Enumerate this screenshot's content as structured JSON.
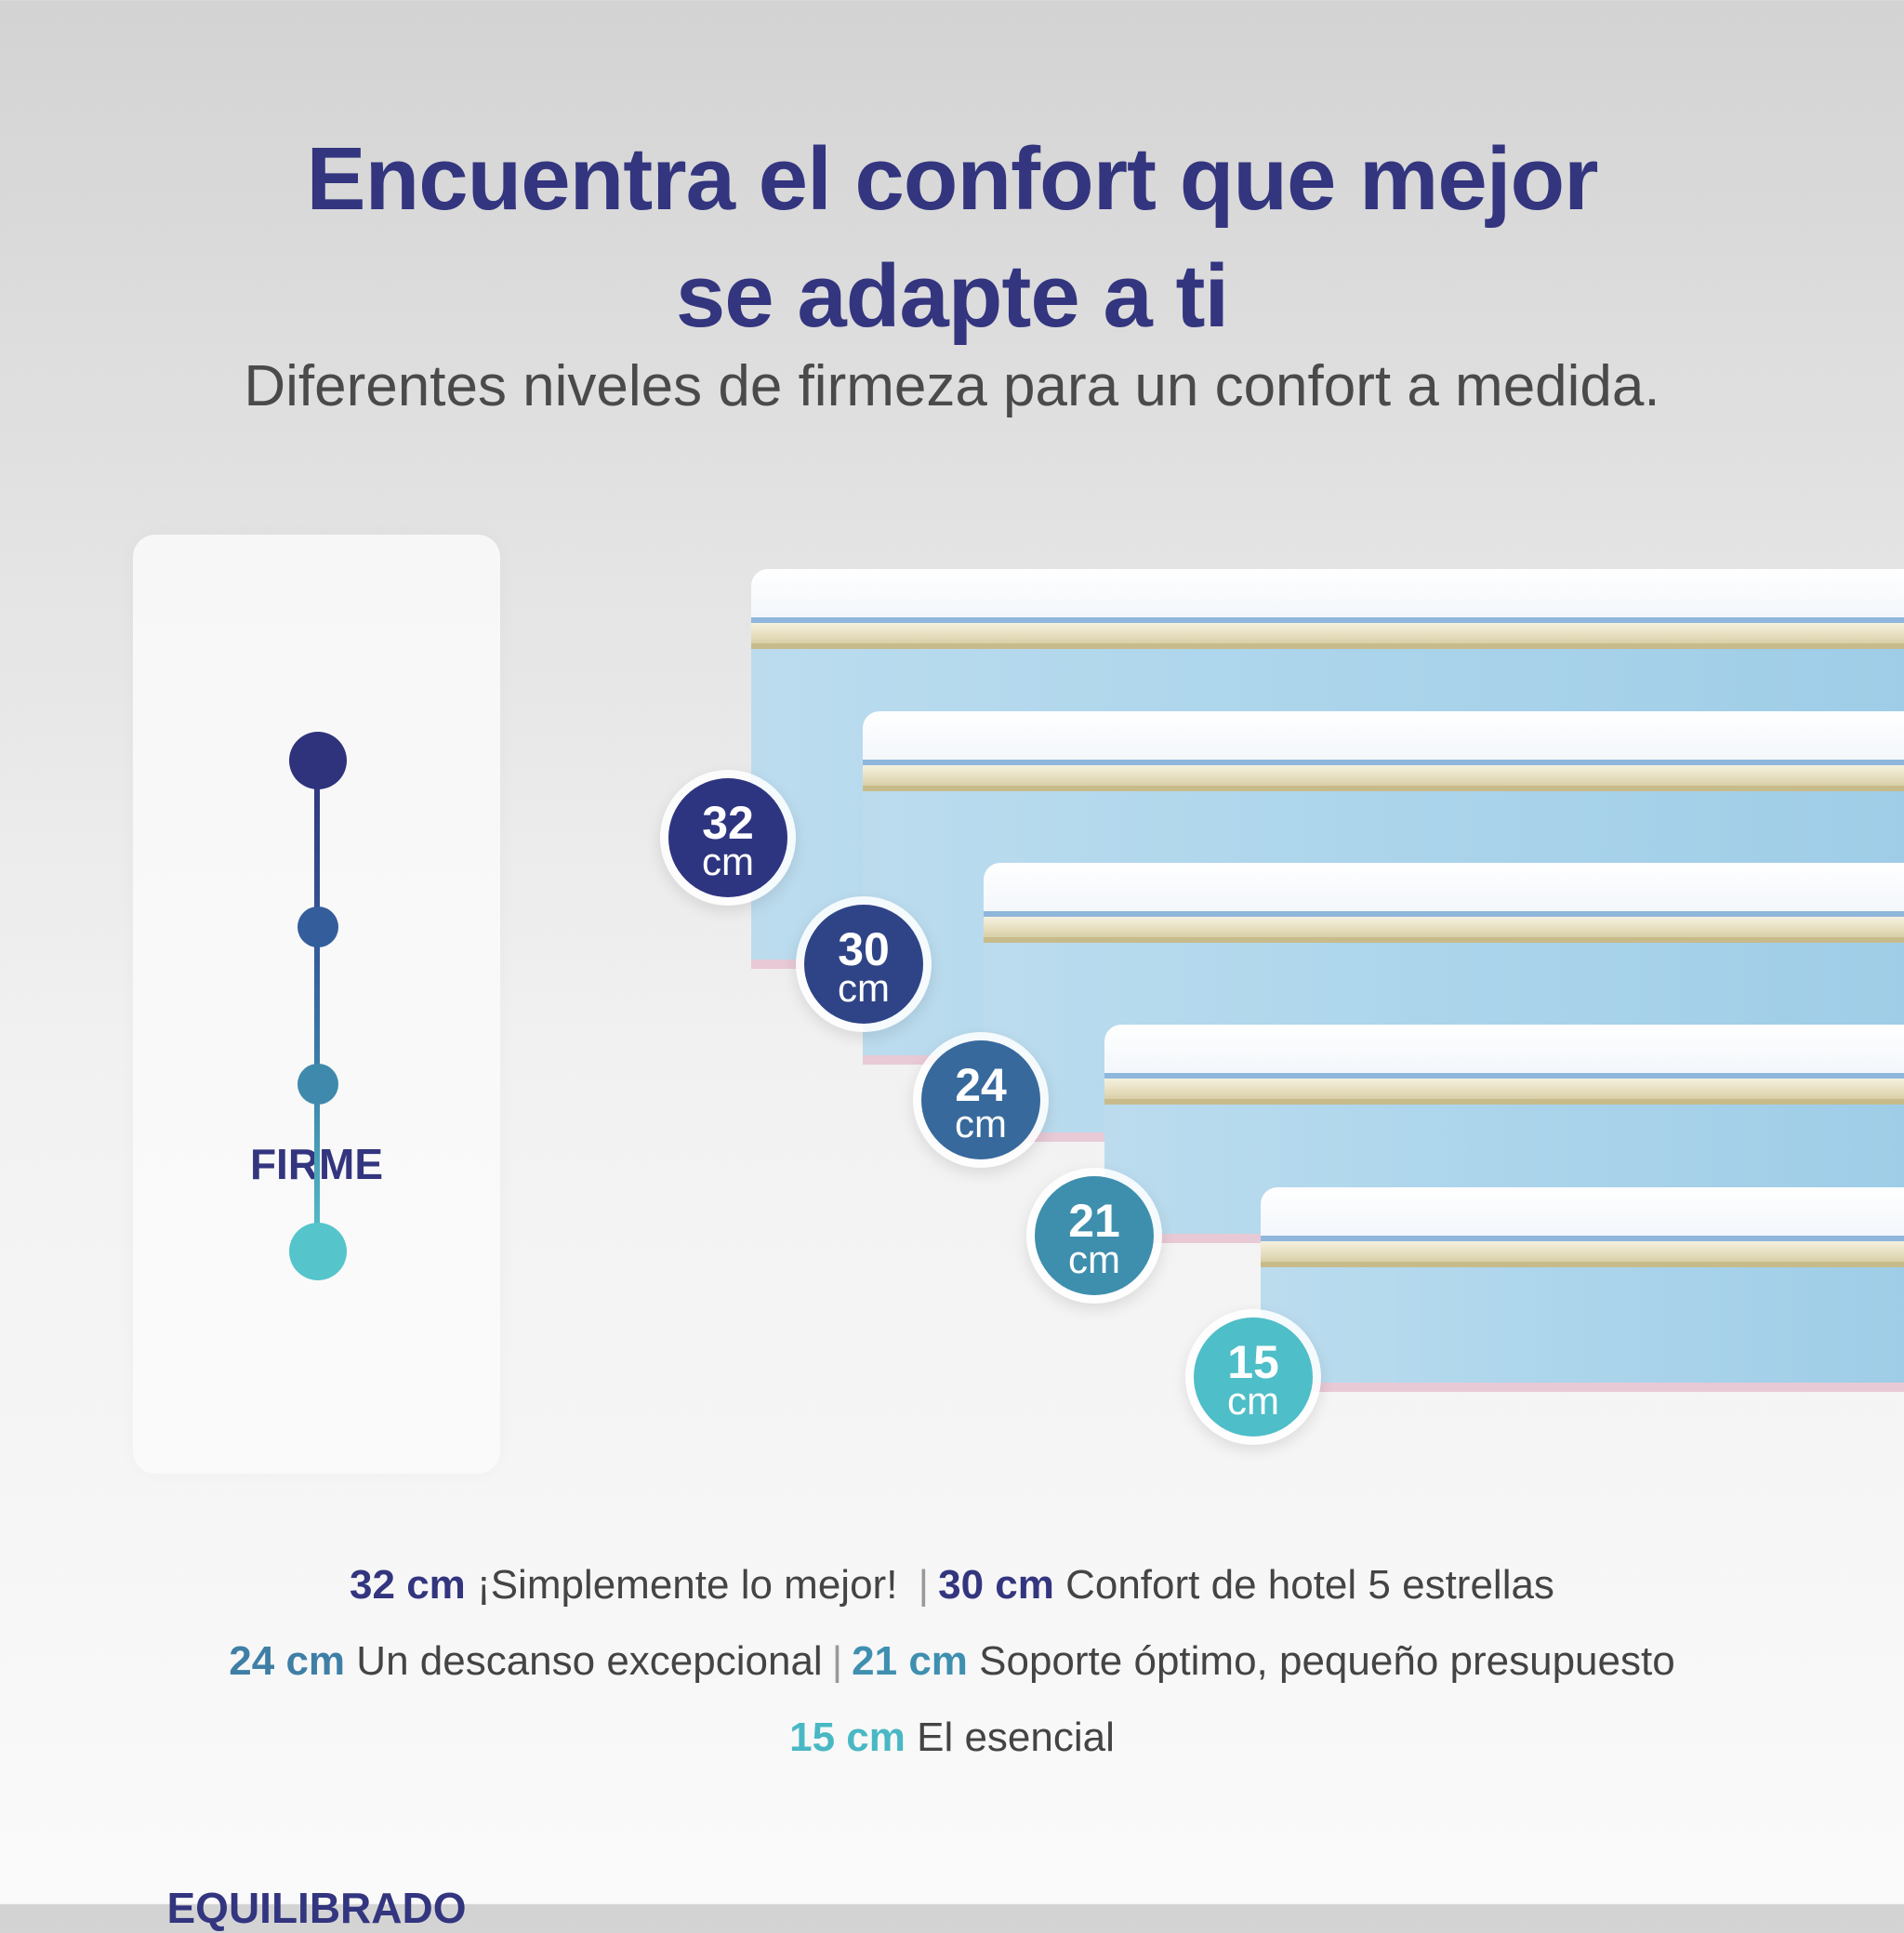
{
  "headline": {
    "line1": "Encuentra el confort que mejor",
    "line2": "se adapte a ti"
  },
  "subtitle": "Diferentes niveles de firmeza para un confort a medida.",
  "scale": {
    "top_label": "FIRME",
    "bottom_label": "EQUILIBRADO",
    "colors": [
      "#2e337c",
      "#345d9b",
      "#3f8aac",
      "#56c4cb"
    ]
  },
  "mattresses": [
    {
      "height": "32",
      "unit": "cm",
      "color": "#2e3580"
    },
    {
      "height": "30",
      "unit": "cm",
      "color": "#2f4487"
    },
    {
      "height": "24",
      "unit": "cm",
      "color": "#37699c"
    },
    {
      "height": "21",
      "unit": "cm",
      "color": "#3e8fad"
    },
    {
      "height": "15",
      "unit": "cm",
      "color": "#4ebec8"
    }
  ],
  "legend": {
    "items": [
      {
        "key": "32 cm",
        "text": " ¡Simplemente lo mejor!",
        "color": "#33357f"
      },
      {
        "key": "30 cm",
        "text": " Confort de hotel 5 estrellas",
        "color": "#33357f"
      },
      {
        "key": "24 cm",
        "text": " Un descanso excepcional",
        "color": "#3f7fa6"
      },
      {
        "key": "21 cm",
        "text": " Soporte óptimo, pequeño presupuesto",
        "color": "#3f8fb0"
      },
      {
        "key": "15 cm",
        "text": " El esencial",
        "color": "#49b8c4"
      }
    ],
    "separator": "|"
  }
}
